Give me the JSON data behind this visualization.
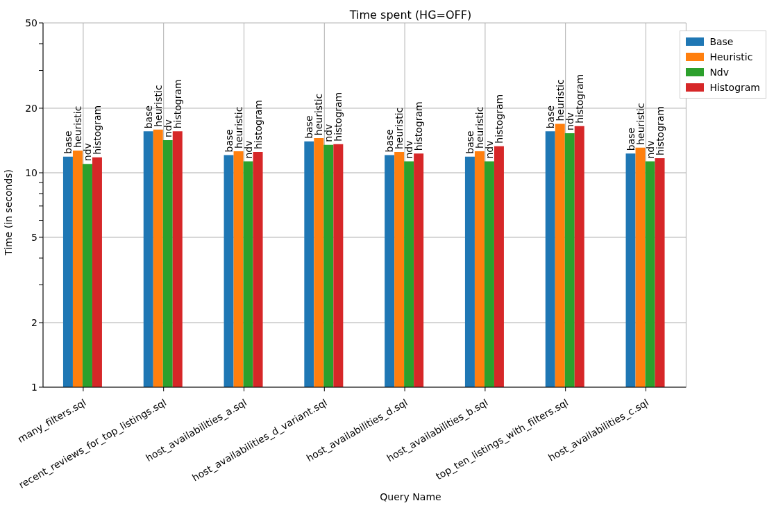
{
  "chart_data": {
    "type": "bar",
    "title": "Time spent (HG=OFF)",
    "xlabel": "Query Name",
    "ylabel": "Time (in seconds)",
    "categories": [
      "many_filters.sql",
      "recent_reviews_for_top_listings.sql",
      "host_availabilities_a.sql",
      "host_availabilities_d_variant.sql",
      "host_availabilities_d.sql",
      "host_availabilities_b.sql",
      "top_ten_listings_with_filters.sql",
      "host_availabilities_c.sql"
    ],
    "series": [
      {
        "name": "Base",
        "color": "#1f77b4",
        "values": [
          11.9,
          15.6,
          12.1,
          14.0,
          12.1,
          11.9,
          15.6,
          12.3
        ],
        "value_labels": [
          "base",
          "base",
          "base",
          "base",
          "base",
          "base",
          "base",
          "base"
        ]
      },
      {
        "name": "Heuristic",
        "color": "#ff7f0e",
        "values": [
          12.7,
          15.9,
          12.6,
          14.5,
          12.5,
          12.6,
          16.9,
          13.1
        ],
        "value_labels": [
          "heuristic",
          "heuristic",
          "heuristic",
          "heuristic",
          "heuristic",
          "heuristic",
          "heuristic",
          "heuristic"
        ]
      },
      {
        "name": "Ndv",
        "color": "#2ca02c",
        "values": [
          11.0,
          14.2,
          11.3,
          13.5,
          11.3,
          11.3,
          15.3,
          11.3
        ],
        "value_labels": [
          "ndv",
          "ndv",
          "ndv",
          "ndv",
          "ndv",
          "ndv",
          "ndv",
          "ndv"
        ]
      },
      {
        "name": "Histogram",
        "color": "#d62728",
        "values": [
          11.8,
          15.6,
          12.5,
          13.6,
          12.3,
          13.3,
          16.5,
          11.7
        ],
        "value_labels": [
          "histogram",
          "histogram",
          "histogram",
          "histogram",
          "histogram",
          "histogram",
          "histogram",
          "histogram"
        ]
      }
    ],
    "log": true,
    "ylim": [
      1,
      50
    ],
    "yticks": [
      1,
      2,
      {
        "value": 3,
        "label": null
      },
      {
        "value": 4,
        "label": null
      },
      5,
      {
        "value": 6,
        "label": null
      },
      {
        "value": 7,
        "label": null
      },
      {
        "value": 8,
        "label": null
      },
      {
        "value": 9,
        "label": null
      },
      10,
      20,
      {
        "value": 30,
        "label": null
      },
      {
        "value": 40,
        "label": null
      },
      50
    ],
    "grid": true,
    "legend": "top right"
  }
}
